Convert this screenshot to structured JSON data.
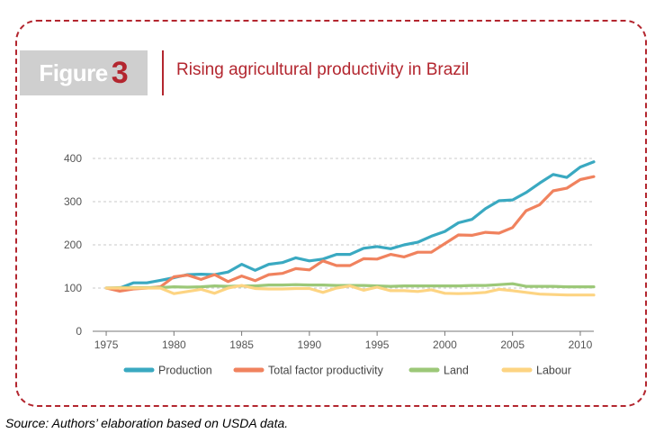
{
  "figure": {
    "label_word": "Figure",
    "label_number": "3",
    "title": "Rising agricultural productivity in Brazil"
  },
  "source": "Source: Authors’ elaboration based on USDA data.",
  "colors": {
    "accent": "#b3262f",
    "badge_bg": "#cfcfcf"
  },
  "chart_data": {
    "type": "line",
    "title": "",
    "xlabel": "",
    "ylabel": "",
    "xlim": [
      1974,
      2011
    ],
    "ylim": [
      0,
      400
    ],
    "yticks": [
      0,
      100,
      200,
      300,
      400
    ],
    "xticks": [
      1975,
      1980,
      1985,
      1990,
      1995,
      2000,
      2005,
      2010
    ],
    "grid": "horizontal dashed",
    "legend": "bottom",
    "x": [
      1975,
      1976,
      1977,
      1978,
      1979,
      1980,
      1981,
      1982,
      1983,
      1984,
      1985,
      1986,
      1987,
      1988,
      1989,
      1990,
      1991,
      1992,
      1993,
      1994,
      1995,
      1996,
      1997,
      1998,
      1999,
      2000,
      2001,
      2002,
      2003,
      2004,
      2005,
      2006,
      2007,
      2008,
      2009,
      2010,
      2011
    ],
    "series": [
      {
        "name": "Production",
        "color": "#3aa9c1",
        "values": [
          100,
          100,
          112,
          112,
          118,
          124,
          131,
          132,
          131,
          137,
          155,
          141,
          155,
          159,
          170,
          163,
          167,
          178,
          178,
          192,
          196,
          191,
          200,
          206,
          220,
          231,
          251,
          259,
          284,
          302,
          304,
          321,
          343,
          363,
          356,
          380,
          392
        ]
      },
      {
        "name": "Total factor productivity",
        "color": "#f0825e",
        "values": [
          100,
          93,
          98,
          100,
          103,
          126,
          130,
          120,
          131,
          115,
          128,
          117,
          131,
          134,
          145,
          142,
          163,
          152,
          152,
          168,
          167,
          178,
          172,
          183,
          183,
          203,
          223,
          222,
          229,
          227,
          240,
          279,
          293,
          325,
          331,
          351,
          358
        ]
      },
      {
        "name": "Land",
        "color": "#9cc878",
        "values": [
          100,
          101,
          101,
          101,
          101,
          103,
          102,
          103,
          105,
          104,
          105,
          105,
          107,
          107,
          108,
          107,
          107,
          106,
          106,
          106,
          105,
          104,
          105,
          105,
          105,
          105,
          105,
          106,
          106,
          108,
          110,
          104,
          104,
          104,
          103,
          103,
          103
        ]
      },
      {
        "name": "Labour",
        "color": "#fdd482",
        "values": [
          100,
          100,
          100,
          100,
          100,
          87,
          92,
          97,
          88,
          100,
          106,
          99,
          98,
          98,
          99,
          99,
          90,
          100,
          105,
          95,
          102,
          94,
          94,
          92,
          96,
          88,
          87,
          88,
          90,
          97,
          94,
          90,
          86,
          85,
          84,
          84,
          84
        ]
      }
    ]
  }
}
